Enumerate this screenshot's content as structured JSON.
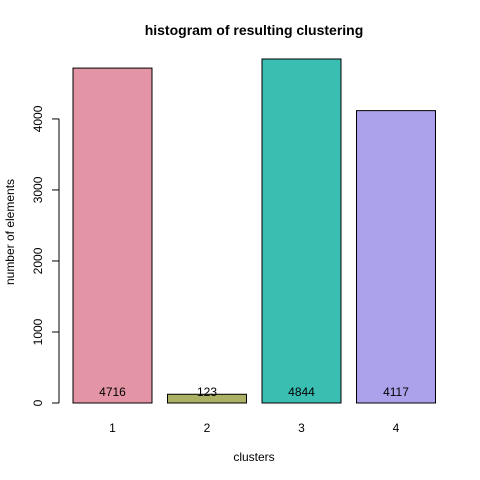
{
  "chart_data": {
    "type": "bar",
    "title": "histogram of resulting clustering",
    "xlabel": "clusters",
    "ylabel": "number of elements",
    "categories": [
      "1",
      "2",
      "3",
      "4"
    ],
    "values": [
      4716,
      123,
      4844,
      4117
    ],
    "data_labels": [
      "4716",
      "123",
      "4844",
      "4117"
    ],
    "bar_colors": [
      "#E495A5",
      "#ABB065",
      "#39BEB1",
      "#ACA2EC"
    ],
    "ylim": [
      0,
      4844
    ],
    "yticks": [
      0,
      1000,
      2000,
      3000,
      4000
    ],
    "ytick_labels": [
      "0",
      "1000",
      "2000",
      "3000",
      "4000"
    ],
    "grid": false,
    "legend": "none"
  }
}
